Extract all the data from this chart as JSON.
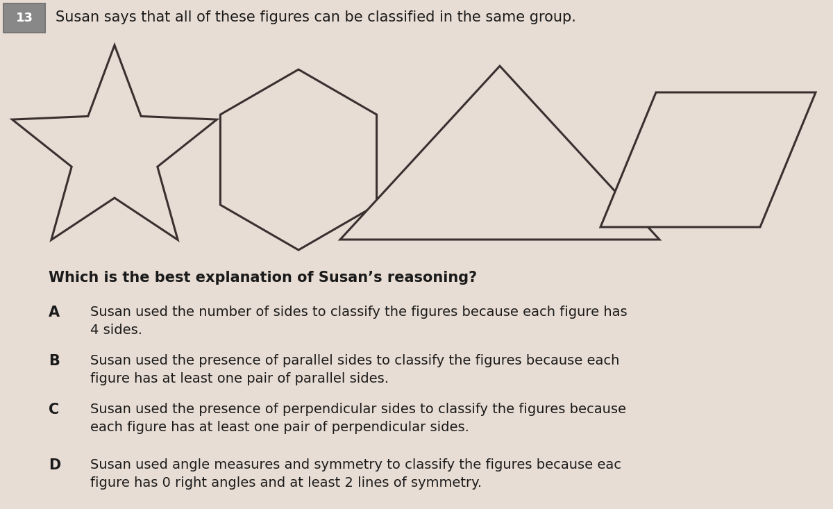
{
  "background_color": "#e8ddd4",
  "title_text": "Susan says that all of these figures can be classified in the same group.",
  "question_text": "Which is the best explanation of Susan’s reasoning?",
  "choices": [
    {
      "label": "A",
      "text": "Susan used the number of sides to classify the figures because each figure has\n4 sides."
    },
    {
      "label": "B",
      "text": "Susan used the presence of parallel sides to classify the figures because each\nfigure has at least one pair of parallel sides."
    },
    {
      "label": "C",
      "text": "Susan used the presence of perpendicular sides to classify the figures because\neach figure has at least one pair of perpendicular sides."
    },
    {
      "label": "D",
      "text": "Susan used angle measures and symmetry to classify the figures because eac\nfigure has 0 right angles and at least 2 lines of symmetry."
    }
  ],
  "header_label": "13",
  "shape_color": "#3a3030",
  "shape_fill": "#e8ddd4",
  "line_width": 2.2,
  "text_color": "#1a1a1a",
  "title_fontsize": 15,
  "question_fontsize": 15,
  "choice_fontsize": 14,
  "label_fontsize": 15
}
